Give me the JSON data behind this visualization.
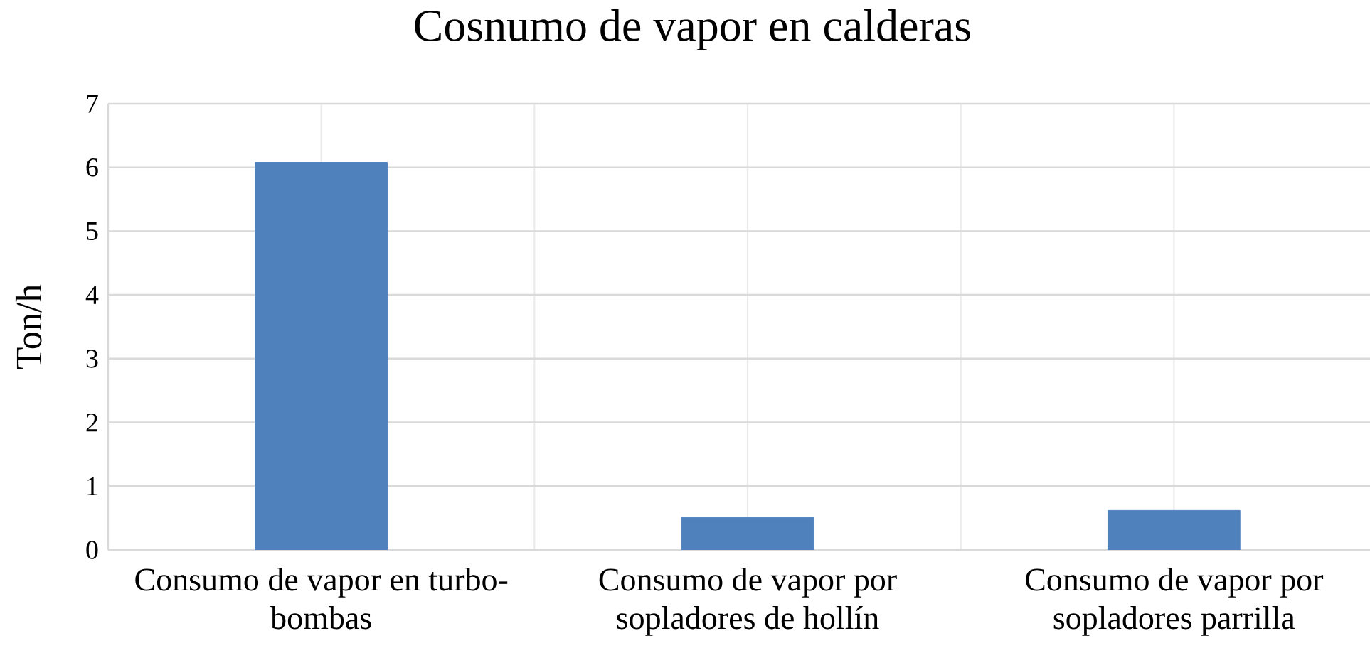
{
  "chart_data": {
    "type": "bar",
    "title": "Cosnumo de vapor en calderas",
    "ylabel": "Ton/h",
    "categories": [
      "Consumo de vapor en turbo-bombas",
      "Consumo de vapor por sopladores de hollín",
      "Consumo de vapor por sopladores parrilla"
    ],
    "values": [
      6.08,
      0.51,
      0.62
    ],
    "color": "#4f81bd",
    "ylim": [
      0,
      7
    ],
    "yticks": [
      0,
      1,
      2,
      3,
      4,
      5,
      6,
      7
    ],
    "grid": true
  }
}
